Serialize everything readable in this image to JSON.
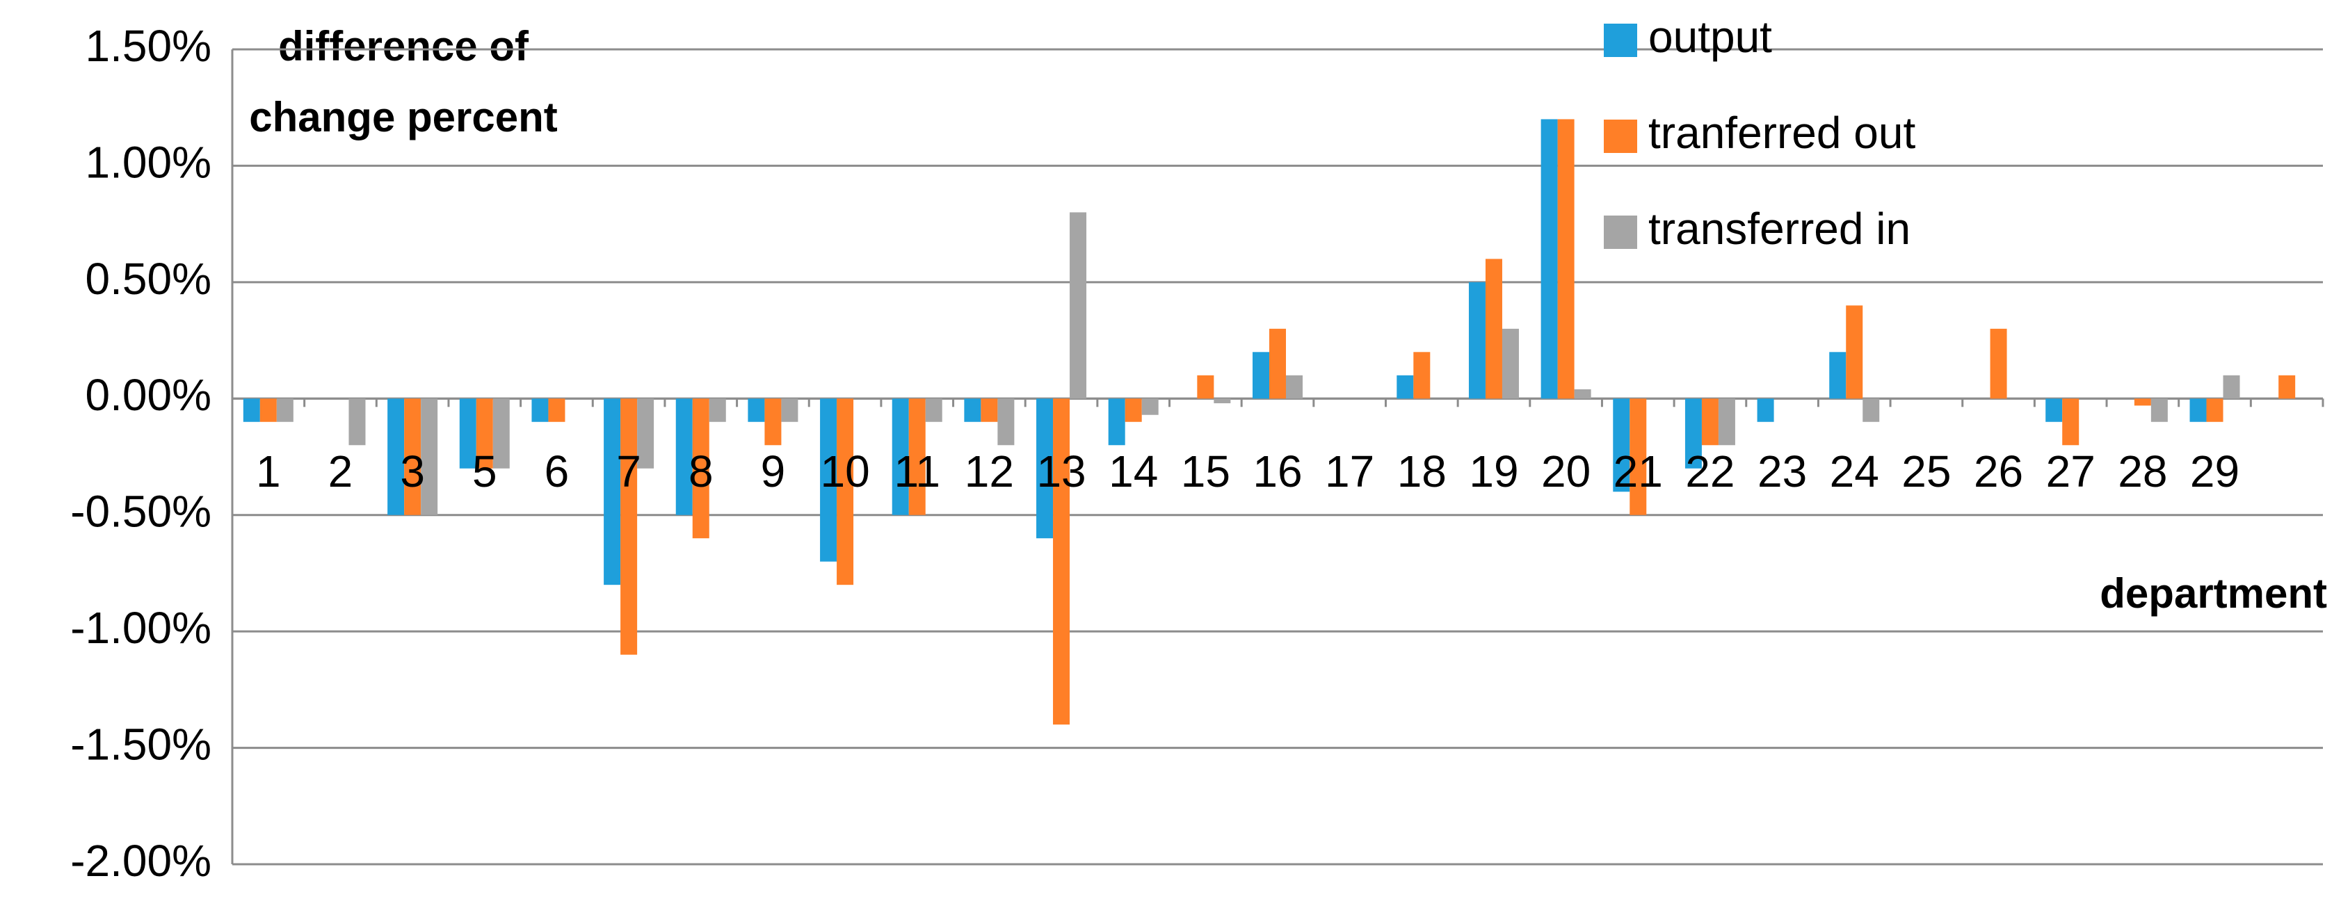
{
  "chart_data": {
    "type": "bar",
    "y_label": [
      "difference of",
      "change percent"
    ],
    "x_label": "department",
    "categories": [
      "1",
      "2",
      "3",
      "5",
      "6",
      "7",
      "8",
      "9",
      "10",
      "11",
      "12",
      "13",
      "14",
      "15",
      "16",
      "17",
      "18",
      "19",
      "20",
      "21",
      "22",
      "23",
      "24",
      "25",
      "26",
      "27",
      "28",
      "29",
      null
    ],
    "series": [
      {
        "name": "output",
        "color": "#1f9fdb",
        "values": [
          -0.1,
          0,
          -0.5,
          -0.3,
          -0.1,
          -0.8,
          -0.5,
          -0.1,
          -0.7,
          -0.5,
          -0.1,
          -0.6,
          -0.2,
          0,
          0.2,
          0,
          0.1,
          0.5,
          1.2,
          -0.4,
          -0.3,
          -0.1,
          0.2,
          0,
          0,
          -0.1,
          0,
          -0.1,
          0
        ]
      },
      {
        "name": "tranferred out",
        "color": "#ff7f27",
        "values": [
          -0.1,
          0,
          -0.5,
          -0.3,
          -0.1,
          -1.1,
          -0.6,
          -0.2,
          -0.8,
          -0.5,
          -0.1,
          -1.4,
          -0.1,
          0.1,
          0.3,
          0,
          0.2,
          0.6,
          1.2,
          -0.5,
          -0.2,
          0,
          0.4,
          0,
          0.3,
          -0.2,
          -0.03,
          -0.1,
          0.1
        ]
      },
      {
        "name": "transferred in",
        "color": "#a5a5a5",
        "values": [
          -0.1,
          -0.2,
          -0.5,
          -0.3,
          0,
          -0.3,
          -0.1,
          -0.1,
          0,
          -0.1,
          -0.2,
          0.8,
          -0.07,
          -0.02,
          0.1,
          0,
          0,
          0.3,
          0.04,
          0,
          -0.2,
          0,
          -0.1,
          0,
          0,
          0,
          -0.1,
          0.1,
          0
        ]
      }
    ],
    "ylim": [
      -2,
      1.5
    ],
    "yticks": [
      {
        "value": -2,
        "label": "-2.00%"
      },
      {
        "value": -1.5,
        "label": "-1.50%"
      },
      {
        "value": -1,
        "label": "-1.00%"
      },
      {
        "value": -0.5,
        "label": "-0.50%"
      },
      {
        "value": 0,
        "label": "0.00%"
      },
      {
        "value": 0.5,
        "label": "0.50%"
      },
      {
        "value": 1,
        "label": "1.00%"
      },
      {
        "value": 1.5,
        "label": "1.50%"
      }
    ],
    "grid": true,
    "legend": "top-right"
  }
}
